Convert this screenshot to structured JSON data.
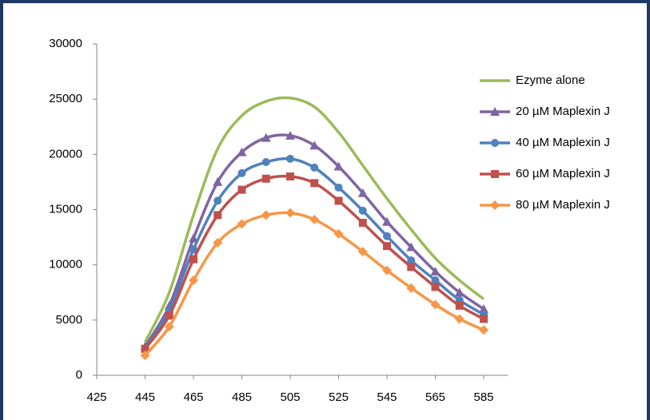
{
  "chart_data": {
    "type": "line",
    "x": [
      445,
      455,
      465,
      475,
      485,
      495,
      505,
      515,
      525,
      535,
      545,
      555,
      565,
      575,
      585
    ],
    "series": [
      {
        "name": "Ezyme alone",
        "color": "#9bbb59",
        "marker": "none",
        "values": [
          3000,
          7500,
          14500,
          20500,
          23500,
          24800,
          25100,
          24300,
          22000,
          19000,
          16000,
          13200,
          10600,
          8600,
          6900
        ]
      },
      {
        "name": "20 µM Maplexin J",
        "color": "#8064a2",
        "marker": "triangle",
        "values": [
          2600,
          6300,
          12400,
          17500,
          20200,
          21500,
          21700,
          20800,
          18900,
          16500,
          13900,
          11600,
          9400,
          7500,
          6000
        ]
      },
      {
        "name": "40 µM Maplexin J",
        "color": "#4f81bd",
        "marker": "circle",
        "values": [
          2400,
          5900,
          11400,
          15800,
          18300,
          19300,
          19600,
          18800,
          17000,
          14900,
          12600,
          10400,
          8600,
          6800,
          5500
        ]
      },
      {
        "name": "60 µM Maplexin J",
        "color": "#c0504d",
        "marker": "square",
        "values": [
          2400,
          5400,
          10500,
          14500,
          16800,
          17800,
          18000,
          17400,
          15800,
          13800,
          11700,
          9800,
          8000,
          6300,
          5100
        ]
      },
      {
        "name": "80 µM Maplexin J",
        "color": "#f79646",
        "marker": "diamond",
        "values": [
          1800,
          4400,
          8600,
          12000,
          13700,
          14500,
          14700,
          14100,
          12800,
          11200,
          9500,
          7900,
          6400,
          5100,
          4100
        ]
      }
    ],
    "xlim": [
      425,
      595
    ],
    "xticks": [
      425,
      445,
      465,
      485,
      505,
      525,
      545,
      565,
      585
    ],
    "ylim": [
      0,
      30000
    ],
    "yticks": [
      0,
      5000,
      10000,
      15000,
      20000,
      25000,
      30000
    ],
    "grid": false,
    "legend": "right"
  }
}
